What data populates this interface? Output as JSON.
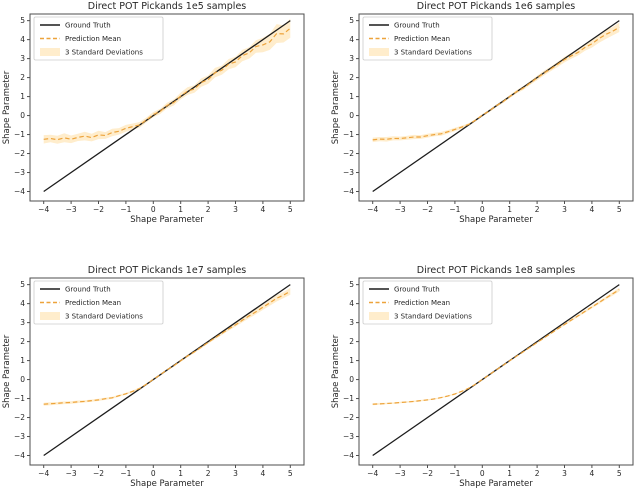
{
  "figure": {
    "background": "#ffffff",
    "accent_colors": {
      "ground_truth": "#1c1c1c",
      "prediction_mean": "#eda33b",
      "std_band": "#ffedcc",
      "legend_border": "#cccccc",
      "axes_border": "#4d4d4d"
    }
  },
  "chart_data": [
    {
      "type": "line",
      "title": "Direct POT Pickands 1e5 samples",
      "xlabel": "Shape Parameter",
      "ylabel": "Shape Parameter",
      "xlim": [
        -4.5,
        5.5
      ],
      "ylim": [
        -4.5,
        5.35
      ],
      "xticks": [
        -4,
        -3,
        -2,
        -1,
        0,
        1,
        2,
        3,
        4,
        5
      ],
      "yticks": [
        -4,
        -3,
        -2,
        -1,
        0,
        1,
        2,
        3,
        4,
        5
      ],
      "grid": false,
      "legend_position": "upper left",
      "legend": [
        "Ground Truth",
        "Prediction Mean",
        "3 Standard Deviations"
      ],
      "x": [
        -4,
        -3.75,
        -3.5,
        -3.25,
        -3,
        -2.75,
        -2.5,
        -2.25,
        -2,
        -1.75,
        -1.5,
        -1.25,
        -1,
        -0.75,
        -0.5,
        -0.25,
        0,
        0.25,
        0.5,
        0.75,
        1,
        1.25,
        1.5,
        1.75,
        2,
        2.25,
        2.5,
        2.75,
        3,
        3.25,
        3.5,
        3.75,
        4,
        4.25,
        4.5,
        4.75,
        5
      ],
      "series": [
        {
          "name": "Ground Truth",
          "style": "solid",
          "color": "#1c1c1c",
          "x": [
            -4,
            5
          ],
          "y": [
            -4,
            5
          ]
        },
        {
          "name": "Prediction Mean",
          "style": "dashed",
          "color": "#eda33b",
          "y": [
            -1.25,
            -1.21,
            -1.27,
            -1.17,
            -1.25,
            -1.15,
            -1.08,
            -1.16,
            -1.02,
            -1.05,
            -0.89,
            -0.83,
            -0.67,
            -0.58,
            -0.49,
            -0.23,
            0.05,
            0.22,
            0.53,
            0.69,
            1.03,
            1.29,
            1.4,
            1.74,
            1.89,
            2.26,
            2.39,
            2.71,
            2.82,
            3.16,
            3.3,
            3.64,
            3.72,
            3.88,
            4.32,
            4.3,
            4.6
          ]
        },
        {
          "name": "3 Standard Deviations",
          "style": "band",
          "color": "#ffedcc",
          "half_width": [
            0.22,
            0.2,
            0.21,
            0.24,
            0.2,
            0.19,
            0.23,
            0.2,
            0.22,
            0.18,
            0.2,
            0.17,
            0.18,
            0.16,
            0.15,
            0.13,
            0.14,
            0.14,
            0.15,
            0.16,
            0.18,
            0.2,
            0.2,
            0.22,
            0.22,
            0.25,
            0.24,
            0.27,
            0.28,
            0.3,
            0.3,
            0.33,
            0.38,
            0.42,
            0.5,
            0.45,
            0.5
          ]
        }
      ]
    },
    {
      "type": "line",
      "title": "Direct POT Pickands 1e6 samples",
      "xlabel": "Shape Parameter",
      "ylabel": "Shape Parameter",
      "xlim": [
        -4.5,
        5.5
      ],
      "ylim": [
        -4.5,
        5.35
      ],
      "xticks": [
        -4,
        -3,
        -2,
        -1,
        0,
        1,
        2,
        3,
        4,
        5
      ],
      "yticks": [
        -4,
        -3,
        -2,
        -1,
        0,
        1,
        2,
        3,
        4,
        5
      ],
      "grid": false,
      "legend_position": "upper left",
      "legend": [
        "Ground Truth",
        "Prediction Mean",
        "3 Standard Deviations"
      ],
      "x": [
        -4,
        -3.75,
        -3.5,
        -3.25,
        -3,
        -2.75,
        -2.5,
        -2.25,
        -2,
        -1.75,
        -1.5,
        -1.25,
        -1,
        -0.75,
        -0.5,
        -0.25,
        0,
        0.25,
        0.5,
        0.75,
        1,
        1.25,
        1.5,
        1.75,
        2,
        2.25,
        2.5,
        2.75,
        3,
        3.25,
        3.5,
        3.75,
        4,
        4.25,
        4.5,
        4.75,
        5
      ],
      "series": [
        {
          "name": "Ground Truth",
          "style": "solid",
          "color": "#1c1c1c",
          "x": [
            -4,
            5
          ],
          "y": [
            -4,
            5
          ]
        },
        {
          "name": "Prediction Mean",
          "style": "dashed",
          "color": "#eda33b",
          "y": [
            -1.28,
            -1.24,
            -1.25,
            -1.2,
            -1.21,
            -1.17,
            -1.13,
            -1.13,
            -1.06,
            -1.0,
            -0.96,
            -0.85,
            -0.73,
            -0.61,
            -0.47,
            -0.25,
            0.02,
            0.24,
            0.51,
            0.72,
            1.0,
            1.25,
            1.45,
            1.72,
            1.98,
            2.24,
            2.46,
            2.7,
            2.95,
            3.15,
            3.33,
            3.59,
            3.78,
            4.05,
            4.27,
            4.44,
            4.65
          ]
        },
        {
          "name": "3 Standard Deviations",
          "style": "band",
          "color": "#ffedcc",
          "half_width": [
            0.12,
            0.11,
            0.12,
            0.11,
            0.1,
            0.1,
            0.11,
            0.1,
            0.1,
            0.09,
            0.1,
            0.09,
            0.09,
            0.08,
            0.07,
            0.06,
            0.06,
            0.06,
            0.07,
            0.07,
            0.08,
            0.09,
            0.1,
            0.1,
            0.12,
            0.13,
            0.12,
            0.14,
            0.15,
            0.16,
            0.16,
            0.18,
            0.2,
            0.22,
            0.24,
            0.22,
            0.25
          ]
        }
      ]
    },
    {
      "type": "line",
      "title": "Direct POT Pickands 1e7 samples",
      "xlabel": "Shape Parameter",
      "ylabel": "Shape Parameter",
      "xlim": [
        -4.5,
        5.5
      ],
      "ylim": [
        -4.5,
        5.35
      ],
      "xticks": [
        -4,
        -3,
        -2,
        -1,
        0,
        1,
        2,
        3,
        4,
        5
      ],
      "yticks": [
        -4,
        -3,
        -2,
        -1,
        0,
        1,
        2,
        3,
        4,
        5
      ],
      "grid": false,
      "legend_position": "upper left",
      "legend": [
        "Ground Truth",
        "Prediction Mean",
        "3 Standard Deviations"
      ],
      "x": [
        -4,
        -3.75,
        -3.5,
        -3.25,
        -3,
        -2.75,
        -2.5,
        -2.25,
        -2,
        -1.75,
        -1.5,
        -1.25,
        -1,
        -0.75,
        -0.5,
        -0.25,
        0,
        0.25,
        0.5,
        0.75,
        1,
        1.25,
        1.5,
        1.75,
        2,
        2.25,
        2.5,
        2.75,
        3,
        3.25,
        3.5,
        3.75,
        4,
        4.25,
        4.5,
        4.75,
        5
      ],
      "series": [
        {
          "name": "Ground Truth",
          "style": "solid",
          "color": "#1c1c1c",
          "x": [
            -4,
            5
          ],
          "y": [
            -4,
            5
          ]
        },
        {
          "name": "Prediction Mean",
          "style": "dashed",
          "color": "#eda33b",
          "y": [
            -1.3,
            -1.27,
            -1.25,
            -1.22,
            -1.21,
            -1.17,
            -1.15,
            -1.11,
            -1.07,
            -1.01,
            -0.96,
            -0.85,
            -0.75,
            -0.62,
            -0.47,
            -0.25,
            0.01,
            0.25,
            0.51,
            0.73,
            0.99,
            1.24,
            1.46,
            1.71,
            1.96,
            2.2,
            2.43,
            2.67,
            2.88,
            3.12,
            3.36,
            3.57,
            3.81,
            4.04,
            4.28,
            4.45,
            4.65
          ]
        },
        {
          "name": "3 Standard Deviations",
          "style": "band",
          "color": "#ffedcc",
          "half_width": [
            0.08,
            0.08,
            0.07,
            0.07,
            0.07,
            0.07,
            0.06,
            0.06,
            0.06,
            0.06,
            0.06,
            0.05,
            0.05,
            0.05,
            0.05,
            0.04,
            0.04,
            0.04,
            0.04,
            0.05,
            0.05,
            0.06,
            0.06,
            0.07,
            0.07,
            0.08,
            0.08,
            0.09,
            0.1,
            0.11,
            0.12,
            0.13,
            0.14,
            0.15,
            0.17,
            0.16,
            0.18
          ]
        }
      ]
    },
    {
      "type": "line",
      "title": "Direct POT Pickands 1e8 samples",
      "xlabel": "Shape Parameter",
      "ylabel": "Shape Parameter",
      "xlim": [
        -4.5,
        5.5
      ],
      "ylim": [
        -4.5,
        5.35
      ],
      "xticks": [
        -4,
        -3,
        -2,
        -1,
        0,
        1,
        2,
        3,
        4,
        5
      ],
      "yticks": [
        -4,
        -3,
        -2,
        -1,
        0,
        1,
        2,
        3,
        4,
        5
      ],
      "grid": false,
      "legend_position": "upper left",
      "legend": [
        "Ground Truth",
        "Prediction Mean",
        "3 Standard Deviations"
      ],
      "x": [
        -4,
        -3.75,
        -3.5,
        -3.25,
        -3,
        -2.75,
        -2.5,
        -2.25,
        -2,
        -1.75,
        -1.5,
        -1.25,
        -1,
        -0.75,
        -0.5,
        -0.25,
        0,
        0.25,
        0.5,
        0.75,
        1,
        1.25,
        1.5,
        1.75,
        2,
        2.25,
        2.5,
        2.75,
        3,
        3.25,
        3.5,
        3.75,
        4,
        4.25,
        4.5,
        4.75,
        5
      ],
      "series": [
        {
          "name": "Ground Truth",
          "style": "solid",
          "color": "#1c1c1c",
          "x": [
            -4,
            5
          ],
          "y": [
            -4,
            5
          ]
        },
        {
          "name": "Prediction Mean",
          "style": "dashed",
          "color": "#eda33b",
          "y": [
            -1.3,
            -1.28,
            -1.26,
            -1.24,
            -1.21,
            -1.18,
            -1.15,
            -1.11,
            -1.07,
            -1.02,
            -0.95,
            -0.86,
            -0.76,
            -0.62,
            -0.46,
            -0.25,
            0.0,
            0.25,
            0.5,
            0.74,
            0.99,
            1.23,
            1.47,
            1.71,
            1.95,
            2.19,
            2.43,
            2.67,
            2.9,
            3.13,
            3.36,
            3.59,
            3.82,
            4.05,
            4.28,
            4.51,
            4.74
          ]
        },
        {
          "name": "3 Standard Deviations",
          "style": "band",
          "color": "#ffedcc",
          "half_width": [
            0.05,
            0.05,
            0.04,
            0.04,
            0.04,
            0.04,
            0.04,
            0.04,
            0.03,
            0.03,
            0.03,
            0.03,
            0.03,
            0.03,
            0.03,
            0.02,
            0.02,
            0.02,
            0.02,
            0.03,
            0.03,
            0.03,
            0.03,
            0.04,
            0.04,
            0.04,
            0.05,
            0.05,
            0.05,
            0.06,
            0.06,
            0.07,
            0.07,
            0.08,
            0.08,
            0.09,
            0.1
          ]
        }
      ]
    }
  ]
}
